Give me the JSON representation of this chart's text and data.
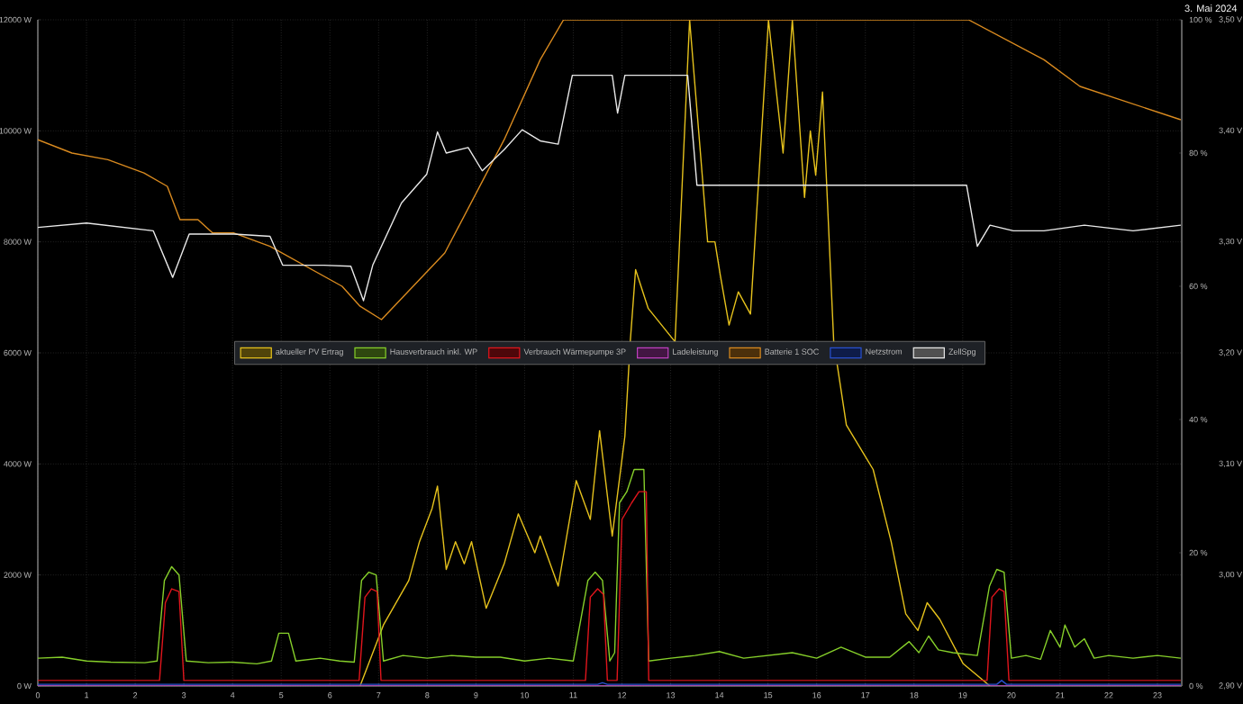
{
  "chart_data": {
    "type": "line",
    "title": "3. Mai 2024",
    "xlim": [
      0,
      23.5
    ],
    "xticks": [
      0,
      1,
      2,
      3,
      4,
      5,
      6,
      7,
      8,
      9,
      10,
      11,
      12,
      13,
      14,
      15,
      16,
      17,
      18,
      19,
      20,
      21,
      22,
      23
    ],
    "ylim": [
      0,
      12000
    ],
    "yticks": [
      {
        "value": 0,
        "label": "0 W"
      },
      {
        "value": 2000,
        "label": "2000 W"
      },
      {
        "value": 4000,
        "label": "4000 W"
      },
      {
        "value": 6000,
        "label": "6000 W"
      },
      {
        "value": 8000,
        "label": "8000 W"
      },
      {
        "value": 10000,
        "label": "10000 W"
      },
      {
        "value": 12000,
        "label": "12000 W"
      }
    ],
    "y2lim": [
      0,
      100
    ],
    "y2ticks": [
      {
        "value": 0,
        "label": "0 %"
      },
      {
        "value": 20,
        "label": "20 %"
      },
      {
        "value": 40,
        "label": "40 %"
      },
      {
        "value": 60,
        "label": "60 %"
      },
      {
        "value": 80,
        "label": "80 %"
      },
      {
        "value": 100,
        "label": "100 %"
      }
    ],
    "y3lim": [
      2.9,
      3.5
    ],
    "y3ticks": [
      {
        "value": 2.9,
        "label": "2,90 V"
      },
      {
        "value": 3.0,
        "label": "3,00 V"
      },
      {
        "value": 3.1,
        "label": "3,10 V"
      },
      {
        "value": 3.2,
        "label": "3,20 V"
      },
      {
        "value": 3.3,
        "label": "3,30 V"
      },
      {
        "value": 3.4,
        "label": "3,40 V"
      },
      {
        "value": 3.5,
        "label": "3,50 V"
      }
    ],
    "grid": true,
    "legend": "center",
    "series": [
      {
        "name": "aktueller PV Ertrag",
        "color": "#e6c21c",
        "x": [
          6.62,
          7.1,
          7.62,
          7.84,
          8.1,
          8.21,
          8.39,
          8.58,
          8.76,
          8.91,
          9.21,
          9.58,
          9.87,
          10.21,
          10.32,
          10.69,
          11.06,
          11.35,
          11.54,
          11.8,
          12.06,
          12.17,
          12.28,
          12.54,
          13.09,
          13.39,
          13.76,
          13.91,
          14.02,
          14.2,
          14.39,
          14.64,
          15.01,
          15.31,
          15.5,
          15.75,
          15.87,
          15.98,
          16.12,
          16.35,
          16.61,
          17.16,
          17.53,
          17.83,
          18.08,
          18.27,
          18.53,
          19.01,
          19.56
        ],
        "values": [
          0,
          1100,
          1900,
          2600,
          3200,
          3600,
          2100,
          2600,
          2200,
          2600,
          1400,
          2200,
          3100,
          2400,
          2700,
          1800,
          3700,
          3000,
          4600,
          2700,
          4500,
          6200,
          7500,
          6800,
          6200,
          12000,
          8000,
          8000,
          7400,
          6500,
          7100,
          6700,
          12000,
          9600,
          12000,
          8800,
          10000,
          9200,
          10700,
          6200,
          4700,
          3900,
          2600,
          1300,
          1000,
          1500,
          1200,
          400,
          0
        ]
      },
      {
        "name": "Hausverbrauch inkl. WP",
        "color": "#86cf2a",
        "x": [
          0,
          0.5,
          1,
          1.5,
          2.2,
          2.45,
          2.6,
          2.75,
          2.9,
          3.05,
          3.5,
          4,
          4.5,
          4.8,
          4.95,
          5.15,
          5.3,
          5.8,
          6.2,
          6.5,
          6.65,
          6.8,
          6.95,
          7.1,
          7.5,
          8,
          8.5,
          9,
          9.5,
          10,
          10.5,
          11,
          11.3,
          11.45,
          11.6,
          11.75,
          11.85,
          11.95,
          12.1,
          12.25,
          12.45,
          12.55,
          13,
          13.5,
          14,
          14.5,
          15,
          15.5,
          16,
          16.5,
          17,
          17.5,
          17.9,
          18.1,
          18.3,
          18.5,
          18.8,
          19.3,
          19.55,
          19.7,
          19.85,
          20,
          20.3,
          20.6,
          20.8,
          21,
          21.1,
          21.3,
          21.5,
          21.7,
          22,
          22.5,
          23,
          23.48
        ],
        "values": [
          500,
          520,
          450,
          430,
          420,
          450,
          1900,
          2150,
          2000,
          450,
          420,
          430,
          400,
          450,
          950,
          950,
          450,
          500,
          450,
          430,
          1900,
          2050,
          2000,
          450,
          550,
          500,
          550,
          520,
          520,
          450,
          500,
          450,
          1900,
          2050,
          1900,
          450,
          600,
          3300,
          3500,
          3900,
          3900,
          450,
          500,
          550,
          620,
          500,
          550,
          600,
          500,
          700,
          520,
          520,
          800,
          600,
          900,
          650,
          600,
          550,
          1800,
          2100,
          2050,
          500,
          550,
          480,
          1000,
          700,
          1100,
          700,
          850,
          500,
          550,
          500,
          550,
          500
        ]
      },
      {
        "name": "Verbrauch Wärmepumpe 3P",
        "color": "#e0151c",
        "x": [
          0,
          2.5,
          2.62,
          2.75,
          2.9,
          3.0,
          6.6,
          6.72,
          6.85,
          6.97,
          7.05,
          11.25,
          11.35,
          11.5,
          11.62,
          11.7,
          11.9,
          12.0,
          12.2,
          12.35,
          12.5,
          12.55,
          19.5,
          19.6,
          19.75,
          19.85,
          19.95,
          23.48
        ],
        "values": [
          100,
          100,
          1500,
          1750,
          1700,
          100,
          100,
          1600,
          1750,
          1700,
          100,
          100,
          1600,
          1750,
          1650,
          100,
          100,
          3000,
          3300,
          3500,
          3500,
          100,
          100,
          1600,
          1750,
          1700,
          100,
          100
        ]
      },
      {
        "name": "Ladeleistung",
        "color": "#c040c0",
        "x": [
          0,
          23.48
        ],
        "values": [
          0,
          0
        ]
      },
      {
        "name": "Batterie 1 SOC",
        "color": "#d98a1f",
        "axis": "y2",
        "x": [
          0,
          0.7,
          1.44,
          2.18,
          2.66,
          2.92,
          3.29,
          3.59,
          4.03,
          4.77,
          5.51,
          6.25,
          6.62,
          7.06,
          8.36,
          9.58,
          10.32,
          10.8,
          19.12,
          20.67,
          21.41,
          23.48
        ],
        "values": [
          82,
          80,
          79,
          77,
          75,
          70,
          70,
          68,
          68,
          66,
          63,
          60,
          57,
          55,
          65,
          82,
          94,
          100,
          100,
          94,
          90,
          85
        ]
      },
      {
        "name": "Netzstrom",
        "color": "#2850d0",
        "x": [
          0,
          11.5,
          11.6,
          11.7,
          19.7,
          19.8,
          19.9,
          23.48
        ],
        "values": [
          30,
          30,
          60,
          30,
          30,
          100,
          30,
          30
        ]
      },
      {
        "name": "ZellSpg",
        "color": "#e8e8e8",
        "axis": "y3",
        "x": [
          0,
          1.0,
          2.37,
          2.77,
          3.11,
          4.03,
          4.77,
          5.03,
          5.88,
          6.43,
          6.69,
          6.88,
          7.47,
          7.99,
          8.21,
          8.39,
          8.84,
          9.13,
          9.58,
          9.95,
          10.32,
          10.69,
          10.98,
          11.8,
          11.91,
          12.06,
          13.35,
          13.54,
          19.08,
          19.3,
          19.56,
          20.04,
          20.67,
          21.5,
          22.5,
          23.48
        ],
        "values": [
          3.313,
          3.317,
          3.31,
          3.268,
          3.307,
          3.307,
          3.305,
          3.279,
          3.279,
          3.278,
          3.247,
          3.279,
          3.335,
          3.361,
          3.399,
          3.38,
          3.385,
          3.364,
          3.383,
          3.401,
          3.391,
          3.388,
          3.45,
          3.45,
          3.416,
          3.45,
          3.45,
          3.351,
          3.351,
          3.296,
          3.315,
          3.31,
          3.31,
          3.315,
          3.31,
          3.315
        ]
      }
    ]
  }
}
